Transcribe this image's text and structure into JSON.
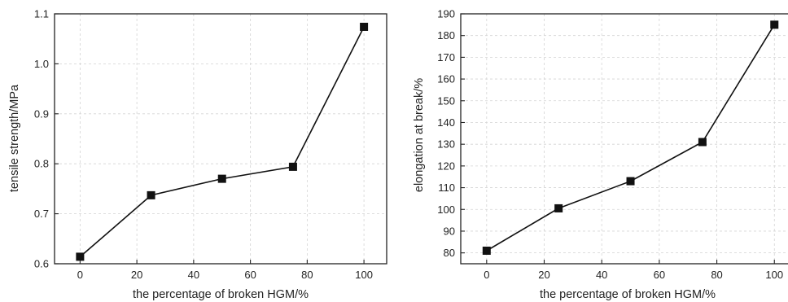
{
  "chart_data": [
    {
      "type": "line",
      "xlabel": "the percentage of broken HGM/%",
      "ylabel": "tensile strength/MPa",
      "x": [
        0,
        25,
        50,
        75,
        100
      ],
      "series": [
        {
          "values": [
            0.614,
            0.737,
            0.77,
            0.794,
            1.074
          ]
        }
      ],
      "xlim": [
        -9,
        108
      ],
      "ylim": [
        0.6,
        1.1
      ],
      "xticks": [
        0,
        20,
        40,
        60,
        80,
        100
      ],
      "yticks": [
        0.6,
        0.7,
        0.8,
        0.9,
        1.0,
        1.1
      ],
      "xtick_labels": [
        "0",
        "20",
        "40",
        "60",
        "80",
        "100"
      ],
      "ytick_labels": [
        "0.6",
        "0.7",
        "0.8",
        "0.9",
        "1.0",
        "1.1"
      ],
      "grid": true,
      "marker": "square",
      "color": "#111111"
    },
    {
      "type": "line",
      "xlabel": "the percentage of broken HGM/%",
      "ylabel": "elongation at break/%",
      "x": [
        0,
        25,
        50,
        75,
        100
      ],
      "series": [
        {
          "values": [
            81,
            100.5,
            113,
            131,
            185
          ]
        }
      ],
      "xlim": [
        -9,
        107
      ],
      "ylim": [
        75,
        190
      ],
      "xticks": [
        0,
        20,
        40,
        60,
        80,
        100
      ],
      "yticks": [
        80,
        90,
        100,
        110,
        120,
        130,
        140,
        150,
        160,
        170,
        180,
        190
      ],
      "xtick_labels": [
        "0",
        "20",
        "40",
        "60",
        "80",
        "100"
      ],
      "ytick_labels": [
        "80",
        "90",
        "100",
        "110",
        "120",
        "130",
        "140",
        "150",
        "160",
        "170",
        "180",
        "190"
      ],
      "grid": true,
      "marker": "square",
      "color": "#111111"
    }
  ]
}
